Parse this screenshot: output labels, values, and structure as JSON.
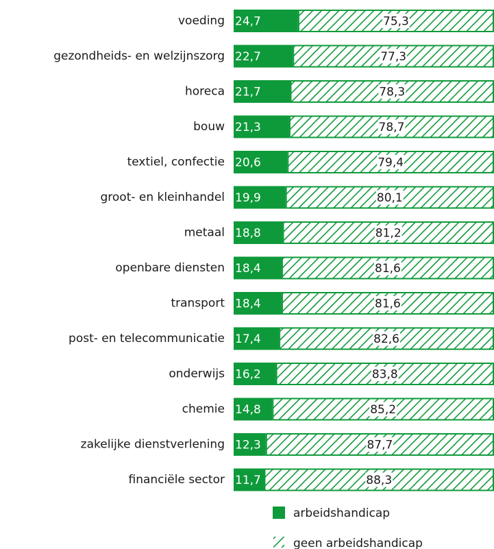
{
  "chart_data": {
    "type": "stacked-bar-horizontal",
    "categories": [
      "voeding",
      "gezondheids- en welzijnszorg",
      "horeca",
      "bouw",
      "textiel, confectie",
      "groot- en kleinhandel",
      "metaal",
      "openbare diensten",
      "transport",
      "post- en telecommunicatie",
      "onderwijs",
      "chemie",
      "zakelijke dienstverlening",
      "financiële sector"
    ],
    "series": [
      {
        "name": "arbeidshandicap",
        "color": "#0e9a3a",
        "values": [
          24.7,
          22.7,
          21.7,
          21.3,
          20.6,
          19.9,
          18.8,
          18.4,
          18.4,
          17.4,
          16.2,
          14.8,
          12.3,
          11.7
        ],
        "value_labels": [
          "24,7",
          "22,7",
          "21,7",
          "21,3",
          "20,6",
          "19,9",
          "18,8",
          "18,4",
          "18,4",
          "17,4",
          "16,2",
          "14,8",
          "12,3",
          "11,7"
        ]
      },
      {
        "name": "geen arbeidshandicap",
        "color": "#0e9a3a",
        "pattern": "diagonal",
        "values": [
          75.3,
          77.3,
          78.3,
          78.7,
          79.4,
          80.1,
          81.2,
          81.6,
          81.6,
          82.6,
          83.8,
          85.2,
          87.7,
          88.3
        ],
        "value_labels": [
          "75,3",
          "77,3",
          "78,3",
          "78,7",
          "79,4",
          "80,1",
          "81,2",
          "81,6",
          "81,6",
          "82,6",
          "83,8",
          "85,2",
          "87,7",
          "88,3"
        ]
      }
    ],
    "xlim": [
      0,
      100
    ]
  }
}
